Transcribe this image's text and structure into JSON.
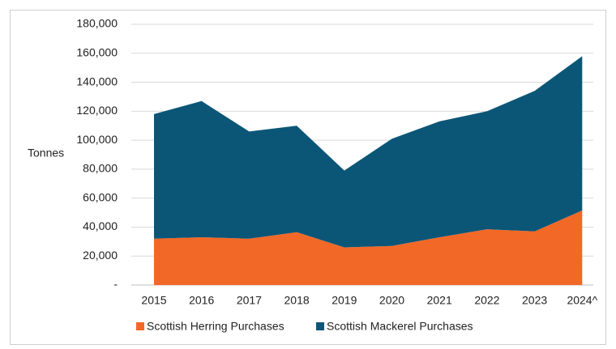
{
  "chart_data": {
    "type": "stacked_area",
    "y_label": "Tonnes",
    "categories": [
      "2015",
      "2016",
      "2017",
      "2018",
      "2019",
      "2020",
      "2021",
      "2022",
      "2023",
      "2024^"
    ],
    "series": [
      {
        "name": "Scottish Herring Purchases",
        "color": "#f26827",
        "values": [
          32000,
          33000,
          32000,
          36500,
          26000,
          27000,
          33000,
          38500,
          37000,
          51500
        ]
      },
      {
        "name": "Scottish Mackerel Purchases",
        "color": "#0b5677",
        "values": [
          86000,
          94000,
          74000,
          73500,
          53000,
          74000,
          80000,
          81500,
          97000,
          106500
        ]
      }
    ],
    "ylim": [
      0,
      180000
    ],
    "yticks": [
      {
        "value": 0,
        "label": "-"
      },
      {
        "value": 20000,
        "label": "20,000"
      },
      {
        "value": 40000,
        "label": "40,000"
      },
      {
        "value": 60000,
        "label": "60,000"
      },
      {
        "value": 80000,
        "label": "80,000"
      },
      {
        "value": 100000,
        "label": "100,000"
      },
      {
        "value": 120000,
        "label": "120,000"
      },
      {
        "value": 140000,
        "label": "140,000"
      },
      {
        "value": 160000,
        "label": "160,000"
      },
      {
        "value": 180000,
        "label": "180,000"
      }
    ],
    "grid": true
  }
}
